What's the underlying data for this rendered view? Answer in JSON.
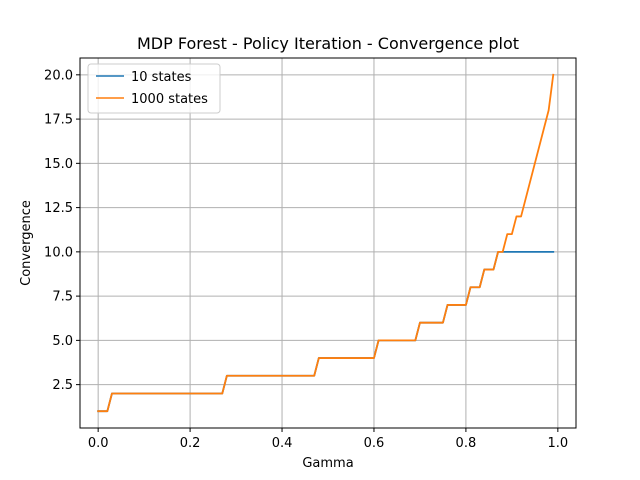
{
  "chart_data": {
    "type": "line",
    "title": "MDP Forest - Policy Iteration - Convergence plot",
    "xlabel": "Gamma",
    "ylabel": "Convergence",
    "xlim": [
      -0.0395,
      1.0395
    ],
    "ylim": [
      0.05,
      20.95
    ],
    "xticks": [
      0.0,
      0.2,
      0.4,
      0.6,
      0.8,
      1.0
    ],
    "xtick_labels": [
      "0.0",
      "0.2",
      "0.4",
      "0.6",
      "0.8",
      "1.0"
    ],
    "yticks": [
      2.5,
      5.0,
      7.5,
      10.0,
      12.5,
      15.0,
      17.5,
      20.0
    ],
    "ytick_labels": [
      "2.5",
      "5.0",
      "7.5",
      "10.0",
      "12.5",
      "15.0",
      "17.5",
      "20.0"
    ],
    "grid": true,
    "legend_position": "top-left",
    "series": [
      {
        "name": "10 states",
        "color": "#1f77b4",
        "x": [
          0.0,
          0.01,
          0.02,
          0.03,
          0.27,
          0.28,
          0.47,
          0.48,
          0.6,
          0.61,
          0.69,
          0.7,
          0.75,
          0.76,
          0.8,
          0.81,
          0.82,
          0.83,
          0.84,
          0.85,
          0.86,
          0.87,
          0.88,
          0.99
        ],
        "y": [
          1,
          1,
          1,
          2,
          2,
          3,
          3,
          4,
          4,
          5,
          5,
          6,
          6,
          7,
          7,
          8,
          8,
          8,
          9,
          9,
          9,
          10,
          10,
          10
        ]
      },
      {
        "name": "1000 states",
        "color": "#ff7f0e",
        "x": [
          0.0,
          0.01,
          0.02,
          0.03,
          0.27,
          0.28,
          0.47,
          0.48,
          0.6,
          0.61,
          0.69,
          0.7,
          0.75,
          0.76,
          0.8,
          0.81,
          0.82,
          0.83,
          0.84,
          0.85,
          0.86,
          0.87,
          0.88,
          0.89,
          0.9,
          0.91,
          0.92,
          0.98,
          0.99
        ],
        "y": [
          1,
          1,
          1,
          2,
          2,
          3,
          3,
          4,
          4,
          5,
          5,
          6,
          6,
          7,
          7,
          8,
          8,
          8,
          9,
          9,
          9,
          10,
          10,
          11,
          11,
          12,
          12,
          18,
          20
        ]
      }
    ]
  }
}
